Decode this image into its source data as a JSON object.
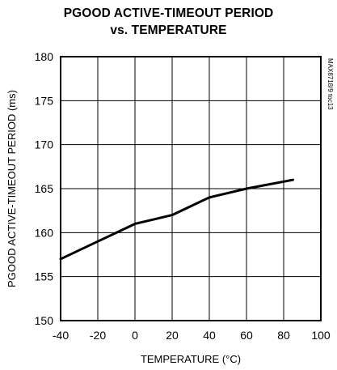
{
  "chart_data": {
    "type": "line",
    "title": [
      "PGOOD ACTIVE-TIMEOUT PERIOD",
      "vs. TEMPERATURE"
    ],
    "xlabel": "TEMPERATURE (°C)",
    "ylabel": "PGOOD ACTIVE-TIMEOUT PERIOD (ms)",
    "xlim": [
      -40,
      100
    ],
    "ylim": [
      150,
      180
    ],
    "xticks": [
      -40,
      -20,
      0,
      20,
      40,
      60,
      80,
      100
    ],
    "yticks": [
      150,
      155,
      160,
      165,
      170,
      175,
      180
    ],
    "grid": true,
    "watermark": "MAX8718/9 toc13",
    "series": [
      {
        "x": [
          -40,
          -30,
          -20,
          -10,
          0,
          10,
          20,
          30,
          40,
          50,
          60,
          70,
          80,
          85
        ],
        "y": [
          157,
          158,
          159,
          160,
          161,
          161.5,
          162,
          163,
          164,
          164.5,
          165,
          165.4,
          165.8,
          166
        ],
        "color": "#000000"
      }
    ]
  }
}
